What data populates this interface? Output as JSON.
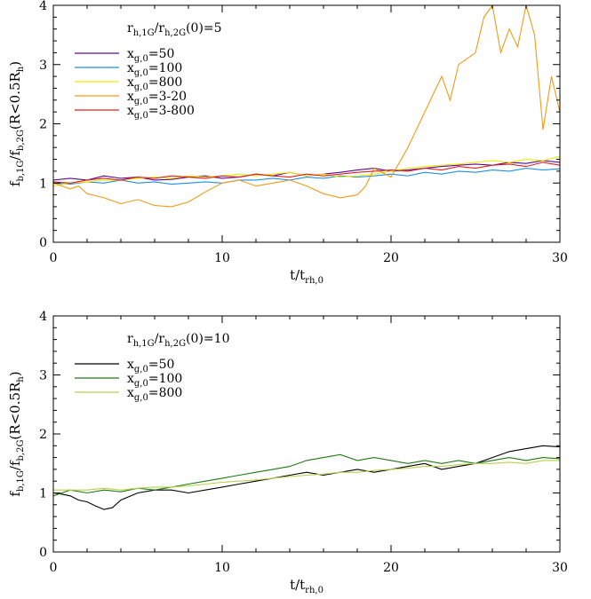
{
  "chart_data": [
    {
      "type": "line",
      "panel": "top",
      "xlim": [
        0,
        30
      ],
      "ylim": [
        0,
        4
      ],
      "xticks": [
        0,
        10,
        20,
        30
      ],
      "yticks": [
        0,
        1,
        2,
        3,
        4
      ],
      "xlabel": {
        "base": "t/t",
        "sub": "rh,0"
      },
      "ylabel": {
        "p1": "f",
        "s1": "b,1G",
        "p2": "/f",
        "s2": "b,2G",
        "p3": "(R<0.5R",
        "s3": "h",
        "p4": ")"
      },
      "annotation": {
        "p1": "r",
        "s1": "h,1G",
        "p2": "/r",
        "s2": "h,2G",
        "p3": "(0)=5"
      },
      "series": [
        {
          "name_sub": "g,0",
          "name_val": "=50",
          "color": "#5b0a99",
          "x": [
            0,
            1,
            2,
            3,
            4,
            5,
            6,
            7,
            8,
            9,
            10,
            11,
            12,
            13,
            14,
            15,
            16,
            17,
            18,
            19,
            20,
            21,
            22,
            23,
            24,
            25,
            26,
            27,
            28,
            29,
            30
          ],
          "y": [
            1.05,
            1.08,
            1.05,
            1.12,
            1.08,
            1.1,
            1.05,
            1.06,
            1.1,
            1.12,
            1.08,
            1.1,
            1.15,
            1.12,
            1.18,
            1.12,
            1.15,
            1.18,
            1.22,
            1.25,
            1.2,
            1.22,
            1.25,
            1.28,
            1.3,
            1.32,
            1.3,
            1.35,
            1.33,
            1.38,
            1.35
          ]
        },
        {
          "name_sub": "g,0",
          "name_val": "=100",
          "color": "#1f8fe8",
          "x": [
            0,
            1,
            2,
            3,
            4,
            5,
            6,
            7,
            8,
            9,
            10,
            11,
            12,
            13,
            14,
            15,
            16,
            17,
            18,
            19,
            20,
            21,
            22,
            23,
            24,
            25,
            26,
            27,
            28,
            29,
            30
          ],
          "y": [
            1.0,
            0.98,
            1.02,
            1.0,
            1.05,
            1.0,
            1.02,
            0.98,
            1.0,
            1.02,
            1.0,
            1.05,
            1.05,
            1.08,
            1.05,
            1.1,
            1.08,
            1.12,
            1.1,
            1.12,
            1.15,
            1.12,
            1.18,
            1.15,
            1.2,
            1.18,
            1.22,
            1.2,
            1.25,
            1.22,
            1.24
          ]
        },
        {
          "name_sub": "g,0",
          "name_val": "=800",
          "color": "#ecec00",
          "x": [
            0,
            1,
            2,
            3,
            4,
            5,
            6,
            7,
            8,
            9,
            10,
            11,
            12,
            13,
            14,
            15,
            16,
            17,
            18,
            19,
            20,
            21,
            22,
            23,
            24,
            25,
            26,
            27,
            28,
            29,
            30
          ],
          "y": [
            0.95,
            1.0,
            1.02,
            1.05,
            1.05,
            1.08,
            1.1,
            1.08,
            1.12,
            1.1,
            1.12,
            1.15,
            1.12,
            1.15,
            1.18,
            1.12,
            1.15,
            1.1,
            1.12,
            1.15,
            1.2,
            1.25,
            1.28,
            1.3,
            1.32,
            1.35,
            1.38,
            1.35,
            1.4,
            1.38,
            1.45
          ]
        },
        {
          "name_sub": "g,0",
          "name_val": "=3-20",
          "color": "#f29a14",
          "x": [
            0,
            0.5,
            1,
            1.5,
            2,
            3,
            4,
            5,
            6,
            7,
            8,
            9,
            10,
            11,
            12,
            13,
            14,
            15,
            16,
            17,
            18,
            18.5,
            19,
            20,
            21,
            21.5,
            22,
            23,
            23.5,
            24,
            25,
            25.5,
            26,
            26.5,
            27,
            27.5,
            28,
            28.5,
            29,
            29.5,
            30
          ],
          "y": [
            1.0,
            0.95,
            0.9,
            0.95,
            0.82,
            0.75,
            0.65,
            0.72,
            0.62,
            0.6,
            0.68,
            0.85,
            1.0,
            1.05,
            0.95,
            1.0,
            1.05,
            0.95,
            0.82,
            0.75,
            0.8,
            0.95,
            1.25,
            1.1,
            1.6,
            1.9,
            2.2,
            2.8,
            2.4,
            3.0,
            3.2,
            3.8,
            4.0,
            3.2,
            3.6,
            3.3,
            4.0,
            3.5,
            1.9,
            2.8,
            2.2
          ]
        },
        {
          "name_sub": "g,0",
          "name_val": "=3-800",
          "color": "#e21f1f",
          "x": [
            0,
            1,
            2,
            3,
            4,
            5,
            6,
            7,
            8,
            9,
            10,
            11,
            12,
            13,
            14,
            15,
            16,
            17,
            18,
            19,
            20,
            21,
            22,
            23,
            24,
            25,
            26,
            27,
            28,
            29,
            30
          ],
          "y": [
            1.02,
            1.0,
            1.05,
            1.08,
            1.05,
            1.1,
            1.08,
            1.12,
            1.1,
            1.08,
            1.12,
            1.1,
            1.15,
            1.12,
            1.1,
            1.15,
            1.12,
            1.15,
            1.18,
            1.2,
            1.22,
            1.2,
            1.25,
            1.22,
            1.28,
            1.25,
            1.3,
            1.32,
            1.28,
            1.35,
            1.3
          ]
        }
      ]
    },
    {
      "type": "line",
      "panel": "bottom",
      "xlim": [
        0,
        30
      ],
      "ylim": [
        0,
        4
      ],
      "xticks": [
        0,
        10,
        20,
        30
      ],
      "yticks": [
        0,
        1,
        2,
        3,
        4
      ],
      "xlabel": {
        "base": "t/t",
        "sub": "rh,0"
      },
      "ylabel": {
        "p1": "f",
        "s1": "b,1G",
        "p2": "/f",
        "s2": "b,2G",
        "p3": "(R<0.5R",
        "s3": "h",
        "p4": ")"
      },
      "annotation": {
        "p1": "r",
        "s1": "h,1G",
        "p2": "/r",
        "s2": "h,2G",
        "p3": "(0)=10"
      },
      "series": [
        {
          "name_sub": "g,0",
          "name_val": "=50",
          "color": "#000000",
          "x": [
            0,
            0.5,
            1,
            1.5,
            2,
            2.5,
            3,
            3.5,
            4,
            5,
            6,
            7,
            8,
            9,
            10,
            11,
            12,
            13,
            14,
            15,
            16,
            17,
            18,
            19,
            20,
            21,
            22,
            23,
            24,
            25,
            26,
            27,
            28,
            29,
            30
          ],
          "y": [
            1.0,
            0.98,
            0.95,
            0.88,
            0.85,
            0.78,
            0.72,
            0.75,
            0.88,
            1.0,
            1.05,
            1.05,
            1.0,
            1.05,
            1.1,
            1.15,
            1.2,
            1.25,
            1.3,
            1.35,
            1.3,
            1.35,
            1.4,
            1.35,
            1.4,
            1.45,
            1.5,
            1.4,
            1.45,
            1.5,
            1.6,
            1.7,
            1.75,
            1.8,
            1.78
          ]
        },
        {
          "name_sub": "g,0",
          "name_val": "=100",
          "color": "#1e7a12",
          "x": [
            0,
            1,
            2,
            3,
            4,
            5,
            6,
            7,
            8,
            9,
            10,
            11,
            12,
            13,
            14,
            15,
            16,
            17,
            18,
            19,
            20,
            21,
            22,
            23,
            24,
            25,
            26,
            27,
            28,
            29,
            30
          ],
          "y": [
            0.95,
            1.05,
            1.0,
            1.05,
            1.02,
            1.08,
            1.05,
            1.1,
            1.15,
            1.2,
            1.25,
            1.3,
            1.35,
            1.4,
            1.45,
            1.55,
            1.6,
            1.65,
            1.55,
            1.6,
            1.55,
            1.5,
            1.55,
            1.5,
            1.55,
            1.5,
            1.55,
            1.6,
            1.55,
            1.6,
            1.58
          ]
        },
        {
          "name_sub": "g,0",
          "name_val": "=800",
          "color": "#b8d04a",
          "x": [
            0,
            1,
            2,
            3,
            4,
            5,
            6,
            7,
            8,
            9,
            10,
            11,
            12,
            13,
            14,
            15,
            16,
            17,
            18,
            19,
            20,
            21,
            22,
            23,
            24,
            25,
            26,
            27,
            28,
            29,
            30
          ],
          "y": [
            1.05,
            1.05,
            1.05,
            1.08,
            1.05,
            1.08,
            1.1,
            1.1,
            1.12,
            1.15,
            1.18,
            1.2,
            1.22,
            1.25,
            1.28,
            1.3,
            1.32,
            1.35,
            1.35,
            1.38,
            1.4,
            1.42,
            1.45,
            1.45,
            1.48,
            1.5,
            1.5,
            1.52,
            1.5,
            1.55,
            1.55
          ]
        }
      ]
    }
  ]
}
